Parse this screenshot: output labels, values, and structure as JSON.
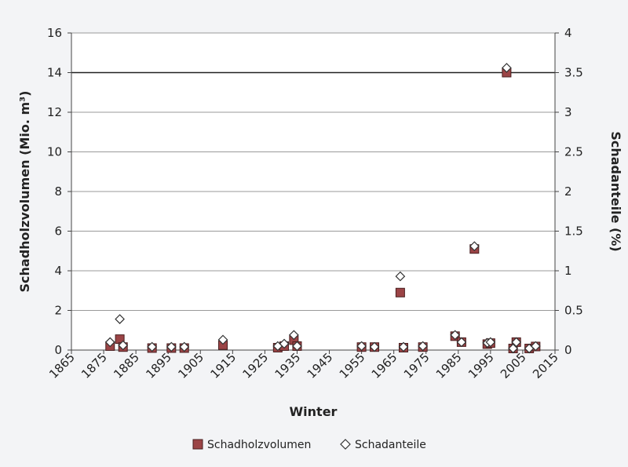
{
  "chart_data": {
    "type": "scatter",
    "title": "",
    "xlabel": "Winter",
    "ylabel_left": "Schadholzvolumen (Mio. m³)",
    "ylabel_right": "Schadanteile (%)",
    "xlim": [
      1865,
      2015
    ],
    "ylim_left": [
      0,
      16
    ],
    "ylim_right": [
      0,
      4
    ],
    "x_ticks": [
      1865,
      1875,
      1885,
      1895,
      1905,
      1915,
      1925,
      1935,
      1945,
      1955,
      1965,
      1975,
      1985,
      1995,
      2005,
      2015
    ],
    "y_ticks_left": [
      "0",
      "2",
      "4",
      "6",
      "8",
      "10",
      "12",
      "14",
      "16"
    ],
    "y_ticks_right": [
      "0",
      "0.5",
      "1",
      "1.5",
      "2",
      "2.5",
      "3",
      "3.5",
      "4"
    ],
    "grid": "horizontal",
    "legend_position": "bottom",
    "series": [
      {
        "name": "Schadholzvolumen",
        "axis": "left",
        "marker": "square",
        "color": "#9b4446",
        "x": [
          1877,
          1880,
          1881,
          1890,
          1896,
          1900,
          1912,
          1929,
          1931,
          1934,
          1935,
          1955,
          1959,
          1967,
          1968,
          1974,
          1984,
          1986,
          1990,
          1994,
          1995,
          2000,
          2002,
          2003,
          2007,
          2009
        ],
        "y": [
          0.2,
          0.55,
          0.15,
          0.1,
          0.1,
          0.1,
          0.25,
          0.12,
          0.2,
          0.5,
          0.2,
          0.15,
          0.15,
          2.9,
          0.12,
          0.15,
          0.7,
          0.4,
          5.1,
          0.3,
          0.35,
          14.0,
          0.08,
          0.4,
          0.08,
          0.18
        ]
      },
      {
        "name": "Schadanteile",
        "axis": "right",
        "marker": "diamond",
        "color": "#ffffff",
        "x": [
          1877,
          1880,
          1881,
          1890,
          1896,
          1900,
          1912,
          1929,
          1931,
          1934,
          1935,
          1955,
          1959,
          1967,
          1968,
          1974,
          1984,
          1986,
          1990,
          1994,
          1995,
          2000,
          2002,
          2003,
          2007,
          2009
        ],
        "y": [
          0.1,
          0.39,
          0.06,
          0.04,
          0.04,
          0.04,
          0.13,
          0.05,
          0.08,
          0.19,
          0.05,
          0.05,
          0.04,
          0.93,
          0.04,
          0.05,
          0.19,
          0.1,
          1.31,
          0.09,
          0.1,
          3.56,
          0.02,
          0.1,
          0.02,
          0.05
        ]
      }
    ]
  }
}
